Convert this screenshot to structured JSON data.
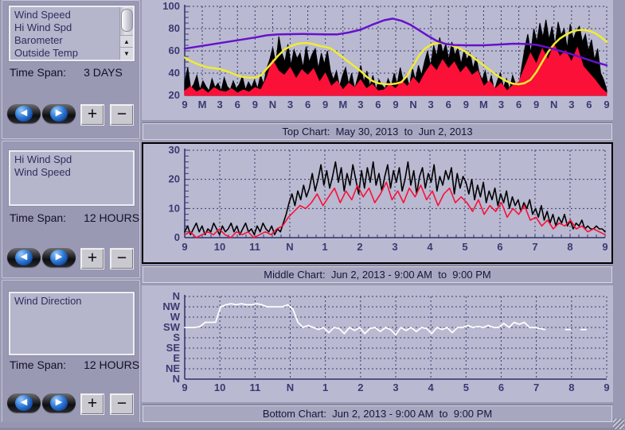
{
  "window": {
    "bg": "#9a99b4"
  },
  "time_span_label": "Time Span:",
  "buttons": {
    "prev": "◀",
    "next": "▶",
    "zoom_in": "+",
    "zoom_out": "−"
  },
  "panels": [
    {
      "items": [
        "Wind Speed",
        "Hi Wind Spd",
        "Barometer",
        "Outside Temp"
      ],
      "time_span": "3 DAYS",
      "scroll_up": "▲",
      "scroll_down": "▼"
    },
    {
      "items": [
        "Hi Wind Spd",
        "Wind Speed"
      ],
      "time_span": "12 HOURS"
    },
    {
      "items": [
        "Wind Direction"
      ],
      "time_span": "12 HOURS"
    }
  ],
  "captions": {
    "top": "Top Chart:  May 30, 2013  to  Jun 2, 2013",
    "middle": "Middle Chart:  Jun 2, 2013 - 9:00 AM  to  9:00 PM",
    "bottom": "Bottom Chart:  Jun 2, 2013 - 9:00 AM  to  9:00 PM"
  },
  "colors": {
    "grid": "#3a3a6e",
    "axis_text": "#3a3a72",
    "plot_bg": "#b9b9d1",
    "hi_wind": "#000000",
    "wind": "#fb1038",
    "temp": "#f0ec32",
    "barometer": "#6611cb",
    "direction": "#ffffff"
  },
  "chart_data": [
    {
      "type": "area",
      "title": "Top Chart: May 30, 2013 to Jun 2, 2013",
      "x": {
        "min": 0,
        "max": 72,
        "tick_labels": [
          "9",
          "M",
          "3",
          "6",
          "9",
          "N",
          "3",
          "6",
          "9",
          "M",
          "3",
          "6",
          "9",
          "N",
          "3",
          "6",
          "9",
          "M",
          "3",
          "6",
          "9",
          "N",
          "3",
          "6",
          "9"
        ],
        "minor_step": 1
      },
      "y": {
        "min": 20,
        "max": 100,
        "ticks": [
          100,
          80,
          60,
          40,
          20
        ],
        "minor_step": 5
      },
      "series": [
        {
          "name": "Hi Wind Spd",
          "color": "#000000",
          "style": "area",
          "baseline": 20,
          "values": [
            32,
            45,
            26,
            30,
            38,
            25,
            33,
            28,
            24,
            35,
            27,
            31,
            24,
            36,
            28,
            25,
            33,
            26,
            30,
            37,
            25,
            32,
            27,
            34,
            26,
            38,
            30,
            44,
            52,
            63,
            48,
            73,
            58,
            50,
            66,
            47,
            61,
            53,
            58,
            45,
            64,
            50,
            57,
            62,
            44,
            58,
            48,
            60,
            42,
            34,
            42,
            28,
            38,
            45,
            30,
            40,
            26,
            36,
            47,
            32,
            42,
            28,
            38,
            25,
            34,
            29,
            26,
            35,
            28,
            40,
            30,
            45,
            33,
            38,
            28,
            44,
            34,
            47,
            38,
            50,
            60,
            46,
            65,
            55,
            72,
            58,
            66,
            52,
            68,
            56,
            63,
            48,
            60,
            52,
            58,
            44,
            54,
            40,
            34,
            42,
            28,
            38,
            24,
            33,
            40,
            27,
            35,
            25,
            38,
            30,
            26,
            45,
            62,
            75,
            58,
            80,
            68,
            85,
            72,
            88,
            70,
            82,
            65,
            86,
            74,
            80,
            62,
            84,
            70,
            78,
            82,
            68,
            75,
            60,
            70,
            52,
            62,
            40,
            34,
            25
          ]
        },
        {
          "name": "Wind Speed",
          "color": "#fb1038",
          "style": "area",
          "baseline": 20,
          "values": [
            24,
            28,
            23,
            26,
            22,
            27,
            24,
            23,
            26,
            22,
            25,
            23,
            27,
            25,
            36,
            52,
            42,
            38,
            45,
            35,
            43,
            38,
            44,
            32,
            40,
            28,
            33,
            25,
            31,
            27,
            34,
            26,
            30,
            24,
            25,
            30,
            26,
            33,
            28,
            36,
            30,
            40,
            48,
            42,
            52,
            44,
            50,
            40,
            46,
            38,
            42,
            28,
            33,
            26,
            31,
            24,
            29,
            32,
            45,
            58,
            48,
            62,
            52,
            66,
            55,
            60,
            50,
            63,
            46,
            40,
            34,
            27,
            22
          ]
        },
        {
          "name": "Outside Temp",
          "color": "#f0ec32",
          "style": "line",
          "width": 2.5,
          "points": [
            [
              0,
              54
            ],
            [
              1,
              51
            ],
            [
              2,
              48.5
            ],
            [
              3,
              46.5
            ],
            [
              4,
              45
            ],
            [
              5,
              44.5
            ],
            [
              6,
              43.5
            ],
            [
              7,
              42
            ],
            [
              8,
              40
            ],
            [
              9,
              38
            ],
            [
              10,
              36.5
            ],
            [
              11,
              36
            ],
            [
              12,
              35.8
            ],
            [
              13,
              38
            ],
            [
              14,
              44
            ],
            [
              15,
              50
            ],
            [
              16,
              56
            ],
            [
              17,
              61
            ],
            [
              18,
              64
            ],
            [
              19,
              66
            ],
            [
              20,
              67
            ],
            [
              21,
              67
            ],
            [
              22,
              66
            ],
            [
              23,
              64.5
            ],
            [
              24,
              63.5
            ],
            [
              25,
              62
            ],
            [
              26,
              58
            ],
            [
              27,
              54
            ],
            [
              28,
              50
            ],
            [
              29,
              46
            ],
            [
              30,
              42
            ],
            [
              31,
              37
            ],
            [
              32,
              33
            ],
            [
              33,
              31
            ],
            [
              34,
              30.2
            ],
            [
              35,
              30
            ],
            [
              36,
              30.5
            ],
            [
              37,
              32
            ],
            [
              38,
              38
            ],
            [
              39,
              47
            ],
            [
              40,
              56
            ],
            [
              41,
              62
            ],
            [
              42,
              65.5
            ],
            [
              43,
              67
            ],
            [
              44,
              67
            ],
            [
              45,
              66
            ],
            [
              46,
              64
            ],
            [
              47,
              62
            ],
            [
              48,
              59
            ],
            [
              49,
              55
            ],
            [
              50,
              51
            ],
            [
              51,
              47
            ],
            [
              52,
              43
            ],
            [
              53,
              39
            ],
            [
              54,
              35.5
            ],
            [
              55,
              32.5
            ],
            [
              56,
              30.5
            ],
            [
              57,
              30
            ],
            [
              58,
              31
            ],
            [
              59,
              34
            ],
            [
              60,
              41
            ],
            [
              61,
              50
            ],
            [
              62,
              59
            ],
            [
              63,
              66
            ],
            [
              64,
              71
            ],
            [
              65,
              74.5
            ],
            [
              66,
              77
            ],
            [
              67,
              78.5
            ],
            [
              68,
              79
            ],
            [
              69,
              78
            ],
            [
              70,
              76
            ],
            [
              71,
              72.5
            ],
            [
              72,
              68
            ]
          ]
        },
        {
          "name": "Barometer",
          "color": "#6611cb",
          "style": "line",
          "width": 2.5,
          "points": [
            [
              0,
              62
            ],
            [
              3,
              64.5
            ],
            [
              6,
              67
            ],
            [
              9,
              69.5
            ],
            [
              12,
              72
            ],
            [
              14,
              74
            ],
            [
              16,
              74.8
            ],
            [
              18,
              75
            ],
            [
              20,
              75.2
            ],
            [
              22,
              75
            ],
            [
              24,
              74.8
            ],
            [
              26,
              74.8
            ],
            [
              28,
              76.5
            ],
            [
              30,
              79
            ],
            [
              32,
              83.5
            ],
            [
              34,
              87.5
            ],
            [
              35.5,
              89
            ],
            [
              37,
              87
            ],
            [
              38.5,
              83.5
            ],
            [
              40,
              78.5
            ],
            [
              41.5,
              73.5
            ],
            [
              43,
              69
            ],
            [
              44.5,
              66.3
            ],
            [
              46,
              65.3
            ],
            [
              48,
              65
            ],
            [
              51,
              65
            ],
            [
              54,
              65.8
            ],
            [
              56,
              66.4
            ],
            [
              58,
              66.2
            ],
            [
              60,
              65.4
            ],
            [
              62,
              63
            ],
            [
              64,
              60
            ],
            [
              66,
              57
            ],
            [
              68,
              53.5
            ],
            [
              70,
              50
            ],
            [
              72,
              47
            ]
          ]
        }
      ]
    },
    {
      "type": "line",
      "title": "Middle Chart: Jun 2, 2013 - 9:00 AM to 9:00 PM",
      "x": {
        "min": 9,
        "max": 21,
        "tick_labels": [
          "9",
          "10",
          "11",
          "N",
          "1",
          "2",
          "3",
          "4",
          "5",
          "6",
          "7",
          "8",
          "9"
        ],
        "minor_step": 0.25
      },
      "y": {
        "min": 0,
        "max": 30,
        "ticks": [
          30,
          20,
          10,
          0
        ],
        "minor_step": 2
      },
      "series": [
        {
          "name": "Hi Wind Spd",
          "color": "#000000",
          "style": "line",
          "width": 1.6,
          "values": [
            2,
            4,
            1,
            3,
            5,
            2,
            4,
            1,
            3,
            2,
            5,
            3,
            1,
            4,
            2,
            3,
            5,
            2,
            4,
            1,
            3,
            5,
            2,
            3,
            1,
            4,
            2,
            5,
            3,
            2,
            4,
            1,
            3,
            2,
            5,
            8,
            12,
            15,
            11,
            16,
            13,
            18,
            14,
            17,
            22,
            16,
            20,
            25,
            18,
            23,
            17,
            21,
            26,
            19,
            24,
            16,
            22,
            18,
            25,
            20,
            15,
            23,
            17,
            24,
            19,
            26,
            18,
            22,
            16,
            21,
            25,
            17,
            23,
            19,
            24,
            16,
            20,
            26,
            18,
            23,
            15,
            21,
            24,
            17,
            22,
            19,
            25,
            16,
            21,
            18,
            23,
            20,
            24,
            15,
            22,
            17,
            21,
            19,
            15,
            20,
            13,
            18,
            14,
            19,
            12,
            16,
            13,
            17,
            11,
            15,
            12,
            16,
            10,
            14,
            11,
            13,
            9,
            12,
            10,
            13,
            8,
            10,
            7,
            11,
            6,
            9,
            5,
            8,
            4,
            7,
            5,
            8,
            4,
            6,
            3,
            5,
            4,
            6,
            3,
            4,
            3,
            3,
            4,
            3,
            3,
            2
          ]
        },
        {
          "name": "Wind Speed",
          "color": "#fb1038",
          "style": "line",
          "width": 1.6,
          "values": [
            1,
            2,
            0,
            1,
            2,
            1,
            3,
            1,
            0,
            2,
            1,
            2,
            0,
            1,
            2,
            1,
            3,
            4,
            7,
            9,
            11,
            10,
            12,
            15,
            11,
            14,
            17,
            12,
            16,
            13,
            18,
            14,
            17,
            12,
            15,
            19,
            13,
            16,
            12,
            17,
            14,
            18,
            13,
            16,
            11,
            15,
            17,
            12,
            14,
            12,
            9,
            13,
            8,
            11,
            9,
            12,
            7,
            10,
            8,
            11,
            6,
            7,
            4,
            6,
            3,
            5,
            4,
            6,
            3,
            4,
            2,
            3,
            2,
            1
          ]
        }
      ]
    },
    {
      "type": "line",
      "title": "Bottom Chart: Jun 2, 2013 - 9:00 AM to 9:00 PM",
      "x": {
        "min": 9,
        "max": 21,
        "tick_labels": [
          "9",
          "10",
          "11",
          "N",
          "1",
          "2",
          "3",
          "4",
          "5",
          "6",
          "7",
          "8",
          "9"
        ]
      },
      "y": {
        "min": 0,
        "max": 8,
        "category_labels_top_to_bottom": [
          "N",
          "NW",
          "W",
          "SW",
          "S",
          "SE",
          "E",
          "NE",
          "N"
        ]
      },
      "series": [
        {
          "name": "Wind Direction",
          "color": "#ffffff",
          "style": "line",
          "width": 1.8,
          "values": [
            5,
            5,
            5,
            5.1,
            5.5,
            5.5,
            5.5,
            7,
            7.2,
            7.3,
            7.2,
            7.3,
            7.2,
            7.2,
            7.3,
            7.2,
            7,
            7,
            7,
            7,
            7.2,
            6.8,
            5.5,
            5,
            5.2,
            5,
            4.8,
            5,
            4.5,
            5,
            4.9,
            4.4,
            5,
            4.7,
            5,
            4.4,
            4.9,
            5,
            4.6,
            5,
            4.8,
            4.3,
            5,
            4.7,
            5,
            4.6,
            5,
            4.9,
            4.4,
            5,
            4.8,
            5,
            4.5,
            5,
            5,
            5.2,
            5,
            5.1,
            5,
            5.2,
            5,
            5,
            5.4,
            5,
            5.5,
            5.3,
            5.5,
            5,
            5,
            4.9,
            4.8,
            null,
            4.8,
            null,
            4.8,
            4.8,
            null,
            4.8,
            4.8,
            null,
            4.9,
            null,
            4.8
          ]
        }
      ]
    }
  ]
}
